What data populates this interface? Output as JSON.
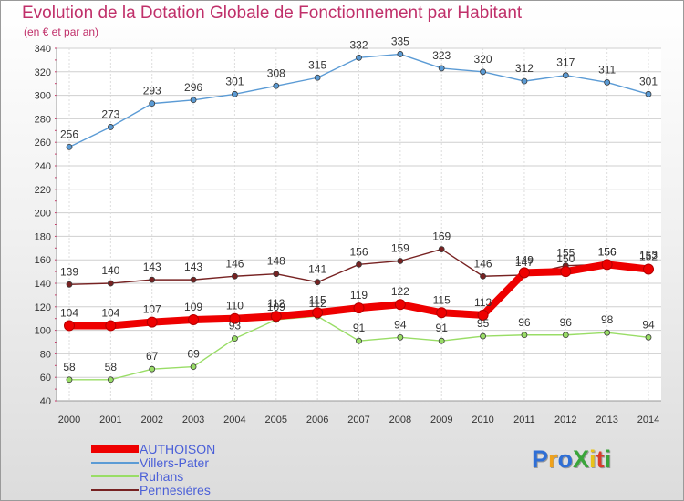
{
  "title": "Evolution de la Dotation Globale de Fonctionnement par Habitant",
  "subtitle": "(en € et par an)",
  "logo": {
    "text": "ProXiti",
    "colors": [
      "#2f6fd6",
      "#f0a21b",
      "#2f6fd6",
      "#3aa53a",
      "#e8c21a",
      "#d93b2b",
      "#3aa53a"
    ]
  },
  "chart_data": {
    "type": "line",
    "x": [
      "2000",
      "2001",
      "2002",
      "2003",
      "2004",
      "2005",
      "2006",
      "2007",
      "2008",
      "2009",
      "2010",
      "2011",
      "2012",
      "2013",
      "2014"
    ],
    "ylim": [
      40,
      340
    ],
    "yticks": [
      40,
      60,
      80,
      100,
      120,
      140,
      160,
      180,
      200,
      220,
      240,
      260,
      280,
      300,
      320,
      340
    ],
    "grid": true,
    "legend_position": "bottom-left",
    "series": [
      {
        "name": "AUTHOISON",
        "color": "#ee0000",
        "values": [
          104,
          104,
          107,
          109,
          110,
          112,
          115,
          119,
          122,
          115,
          113,
          149,
          150,
          156,
          152
        ]
      },
      {
        "name": "Villers-Pater",
        "color": "#5b9bd5",
        "values": [
          256,
          273,
          293,
          296,
          301,
          308,
          315,
          332,
          335,
          323,
          320,
          312,
          317,
          311,
          301
        ]
      },
      {
        "name": "Ruhans",
        "color": "#99dd66",
        "values": [
          58,
          58,
          67,
          69,
          93,
          109,
          112,
          91,
          94,
          91,
          95,
          96,
          96,
          98,
          94
        ]
      },
      {
        "name": "Pennesières",
        "color": "#772222",
        "values": [
          139,
          140,
          143,
          143,
          146,
          148,
          141,
          156,
          159,
          169,
          146,
          147,
          155,
          156,
          153
        ]
      }
    ]
  }
}
